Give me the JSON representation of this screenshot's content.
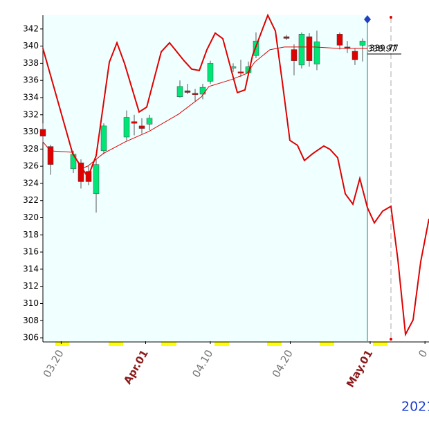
{
  "chart_data": {
    "type": "candlestick",
    "x": [
      0,
      1,
      4,
      5,
      6,
      7,
      8,
      11,
      12,
      13,
      14,
      18,
      19,
      20,
      21,
      22,
      25,
      26,
      27,
      28,
      32,
      33,
      34,
      35,
      36,
      39,
      40,
      41,
      42
    ],
    "open": [
      330.3,
      328.3,
      325.7,
      326.4,
      325.4,
      322.8,
      327.8,
      329.4,
      331.2,
      330.7,
      330.9,
      334.1,
      334.8,
      334.5,
      334.4,
      335.9,
      337.5,
      337.0,
      336.9,
      338.9,
      341.1,
      339.6,
      337.8,
      341.1,
      337.9,
      341.4,
      339.9,
      339.4,
      340.1
    ],
    "high": [
      331.0,
      328.5,
      327.8,
      326.8,
      326.0,
      326.8,
      331.0,
      332.5,
      332.0,
      331.6,
      332.0,
      336.0,
      335.6,
      335.0,
      335.6,
      338.3,
      338.0,
      338.4,
      338.2,
      341.6,
      341.3,
      340.2,
      341.6,
      341.5,
      341.8,
      341.6,
      340.6,
      339.7,
      340.9
    ],
    "low": [
      328.8,
      325.0,
      325.2,
      323.4,
      323.8,
      320.6,
      327.4,
      329.0,
      329.6,
      329.8,
      330.2,
      334.0,
      334.4,
      333.6,
      333.8,
      335.6,
      337.0,
      336.4,
      336.5,
      338.6,
      340.7,
      336.6,
      337.4,
      337.6,
      337.2,
      339.6,
      339.2,
      337.8,
      338.2
    ],
    "close": [
      329.5,
      326.2,
      327.4,
      324.2,
      324.2,
      326.2,
      330.7,
      331.7,
      331.0,
      330.4,
      331.6,
      335.3,
      334.6,
      334.4,
      335.2,
      338.0,
      337.6,
      336.9,
      337.6,
      340.6,
      340.9,
      338.3,
      341.4,
      338.3,
      340.5,
      340.1,
      339.8,
      338.4,
      340.6
    ],
    "up_color": "#00e676",
    "down_color": "#e00000",
    "lines": [
      {
        "color": "#e00000",
        "width": 2,
        "x": [
          0,
          3.91,
          5.91,
          7,
          8.73,
          9.73,
          10.73,
          12.64,
          13.64,
          15.55,
          16.64,
          18.55,
          19.55,
          20.55,
          21.55,
          22.64,
          23.64,
          25.55,
          26.55,
          27.55,
          29.55,
          30.55,
          31.45,
          32.45,
          33.45,
          34.36,
          35.45,
          36.91,
          37.73,
          38.73,
          39.73,
          40.73,
          41.64,
          42.64,
          43.55,
          44.64,
          45.73,
          46.64,
          47.64,
          48.64,
          49.64,
          50.73
        ],
        "values": [
          339.74,
          327.47,
          324.73,
          327.23,
          338.13,
          340.39,
          337.97,
          332.32,
          332.89,
          339.34,
          340.39,
          338.29,
          337.32,
          337.16,
          339.58,
          341.52,
          340.87,
          334.58,
          334.9,
          338.93,
          343.6,
          341.76,
          335.87,
          329.01,
          328.44,
          326.67,
          327.47,
          328.36,
          327.96,
          326.99,
          322.79,
          321.58,
          324.57,
          321.17,
          319.4,
          320.77,
          321.33,
          315.11,
          306.4,
          308.09,
          314.87,
          319.87
        ]
      },
      {
        "color": "#e00000",
        "width": 1,
        "x": [
          0,
          1,
          3.91,
          5,
          5.91,
          7.91,
          10.82,
          13.91,
          17.82,
          20.82,
          21.82,
          24.82,
          26.82,
          27.82,
          29.82,
          31.73,
          33.73,
          35.73,
          38.73,
          41.64,
          42.64
        ],
        "values": [
          328.84,
          327.79,
          327.63,
          325.7,
          326.02,
          327.47,
          328.84,
          330.05,
          332.07,
          334.09,
          335.3,
          336.11,
          336.83,
          338.13,
          339.58,
          339.9,
          339.9,
          339.9,
          339.74,
          339.74,
          339.74
        ]
      }
    ],
    "annotations": [
      "339.77",
      "338.97"
    ],
    "xlim": [
      0,
      50.73
    ],
    "ylim": [
      305.6,
      343.6
    ],
    "yticks": [
      306,
      308,
      310,
      312,
      314,
      316,
      318,
      320,
      322,
      324,
      326,
      328,
      330,
      332,
      334,
      336,
      338,
      340,
      342
    ],
    "xticks": [
      {
        "value": 2.4,
        "label": "03.20"
      },
      {
        "value": 13.5,
        "label": "Apr.01"
      },
      {
        "value": 22,
        "label": "04.10"
      },
      {
        "value": 32.5,
        "label": "04.20"
      },
      {
        "value": 43,
        "label": "May.01"
      },
      {
        "value": 50.2,
        "label": "0"
      }
    ],
    "xtick_colors": [
      "#777777",
      "#8b1a1a",
      "#777777",
      "#777777",
      "#8b1a1a",
      "#777777"
    ],
    "year": "2021"
  }
}
